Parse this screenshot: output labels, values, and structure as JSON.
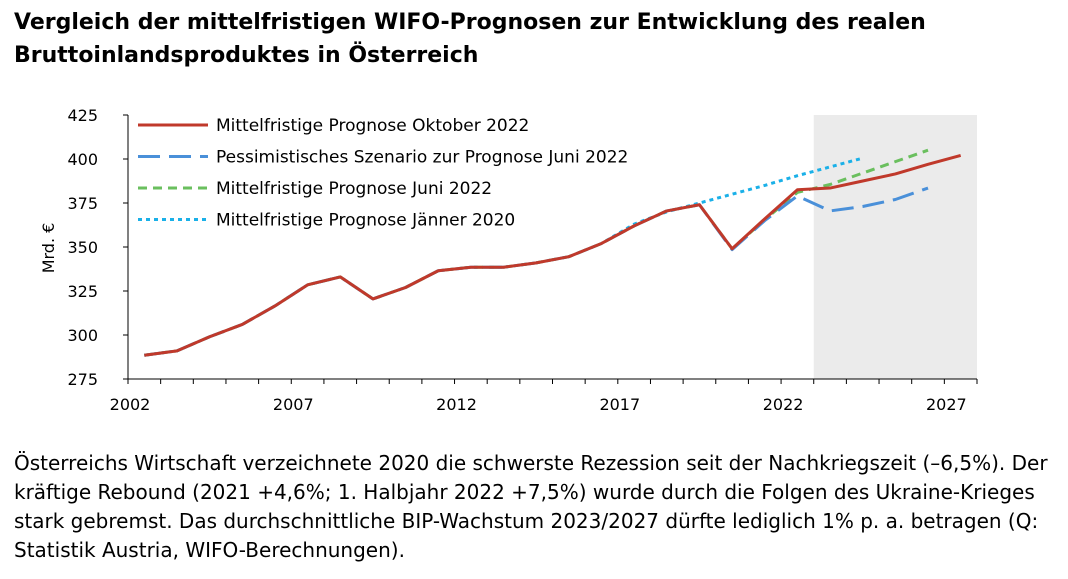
{
  "title": "Vergleich der mittelfristigen WIFO-Prognosen zur Entwicklung des realen Bruttoinlandsproduktes in Österreich",
  "caption": "Österreichs Wirtschaft verzeichnete 2020 die schwerste Rezession seit der Nachkriegszeit (–6,5%). Der kräftige Rebound (2021 +4,6%; 1. Halbjahr 2022 +7,5%) wurde durch die Folgen des Ukraine-Krieges stark gebremst. Das durchschnittliche BIP-Wachstum 2023/2027 dürfte lediglich 1% p. a. betragen (Q: Statistik Austria, WIFO-Berechnungen).",
  "chart_data": {
    "type": "line",
    "title": "",
    "xlabel": "",
    "ylabel": "Mrd. €",
    "xlim": [
      2001,
      2027
    ],
    "ylim": [
      275,
      425
    ],
    "yticks": [
      275,
      300,
      325,
      350,
      375,
      400,
      425
    ],
    "xticks": [
      2002,
      2007,
      2012,
      2017,
      2022,
      2027
    ],
    "forecast_shading": {
      "from": 2022.5,
      "to": 2027.5,
      "color": "#ebebeb"
    },
    "legend_position": "top-left",
    "series": [
      {
        "name": "Mittelfristige Prognose Oktober 2022",
        "color": "#c0392b",
        "dash": "solid",
        "x": [
          2002,
          2003,
          2004,
          2005,
          2006,
          2007,
          2008,
          2009,
          2010,
          2011,
          2012,
          2013,
          2014,
          2015,
          2016,
          2017,
          2018,
          2019,
          2020,
          2021,
          2022,
          2023,
          2024,
          2025,
          2026,
          2027
        ],
        "values": [
          288.5,
          291,
          299,
          306,
          316.5,
          328.5,
          333,
          320.5,
          327,
          336.5,
          338.5,
          338.5,
          341,
          344.5,
          352,
          362,
          370.5,
          374,
          349,
          366,
          382.5,
          383.5,
          387.5,
          391.5,
          397,
          402
        ]
      },
      {
        "name": "Pessimistisches Szenario zur Prognose Juni 2022",
        "color": "#4a90d9",
        "dash": "longdash",
        "x": [
          2002,
          2003,
          2004,
          2005,
          2006,
          2007,
          2008,
          2009,
          2010,
          2011,
          2012,
          2013,
          2014,
          2015,
          2016,
          2017,
          2018,
          2019,
          2020,
          2021,
          2022,
          2023,
          2024,
          2025,
          2026
        ],
        "values": [
          288.5,
          291,
          299,
          306,
          316.5,
          328.5,
          333,
          320.5,
          327,
          336.5,
          338.5,
          338.5,
          341,
          344.5,
          352,
          362,
          370.5,
          374,
          348.5,
          365,
          379,
          370.5,
          373,
          377,
          383.5
        ]
      },
      {
        "name": "Mittelfristige Prognose Juni 2022",
        "color": "#6abf5e",
        "dash": "dash",
        "x": [
          2002,
          2003,
          2004,
          2005,
          2006,
          2007,
          2008,
          2009,
          2010,
          2011,
          2012,
          2013,
          2014,
          2015,
          2016,
          2017,
          2018,
          2019,
          2020,
          2021,
          2022,
          2023,
          2024,
          2025,
          2026
        ],
        "values": [
          288.5,
          291,
          299,
          306,
          316.5,
          328.5,
          333,
          320.5,
          327,
          336.5,
          338.5,
          338.5,
          341,
          344.5,
          352,
          362,
          370.5,
          374,
          349,
          365.5,
          381,
          385.5,
          392,
          398.5,
          405
        ]
      },
      {
        "name": "Mittelfristige Prognose Jänner 2020",
        "color": "#1ab0e8",
        "dash": "dot",
        "x": [
          2002,
          2003,
          2004,
          2005,
          2006,
          2007,
          2008,
          2009,
          2010,
          2011,
          2012,
          2013,
          2014,
          2015,
          2016,
          2017,
          2018,
          2019,
          2020,
          2021,
          2022,
          2023,
          2024
        ],
        "values": [
          288.5,
          291,
          299,
          306,
          316.5,
          328.5,
          333,
          320.5,
          327,
          336.5,
          338.5,
          338.5,
          341,
          344.5,
          352,
          363,
          370,
          375,
          380,
          385,
          390.5,
          395.5,
          400.5
        ]
      }
    ]
  }
}
